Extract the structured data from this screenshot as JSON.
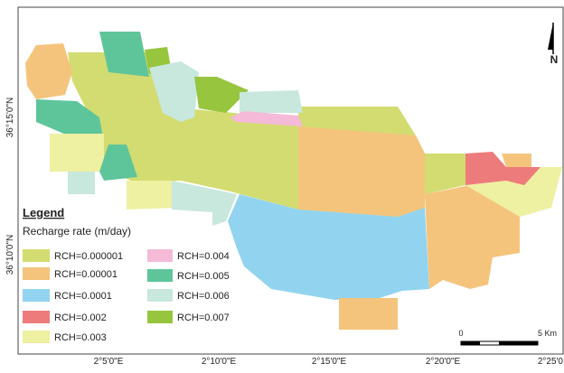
{
  "legend": {
    "title": "Legend",
    "subtitle": "Recharge rate (m/day)",
    "items": [
      {
        "label": "RCH=0.000001",
        "color": "#d3dc70"
      },
      {
        "label": "RCH=0.00001",
        "color": "#f4c47d"
      },
      {
        "label": "RCH=0.0001",
        "color": "#92d4ef"
      },
      {
        "label": "RCH=0.002",
        "color": "#ee7b7c"
      },
      {
        "label": "RCH=0.003",
        "color": "#eef0a2"
      },
      {
        "label": "RCH=0.004",
        "color": "#f5bad7"
      },
      {
        "label": "RCH=0.005",
        "color": "#5ec59b"
      },
      {
        "label": "RCH=0.006",
        "color": "#c8e7dd"
      },
      {
        "label": "RCH=0.007",
        "color": "#97c53e"
      }
    ]
  },
  "latitude_labels": [
    "36°15'0\"N",
    "36°10'0\"N"
  ],
  "longitude_labels": [
    "2°5'0\"E",
    "2°10'0\"E",
    "2°15'0\"E",
    "2°20'0\"E",
    "2°25'0"
  ],
  "north_arrow": "N",
  "scale_bar": {
    "start": "0",
    "end": "5 Km"
  }
}
